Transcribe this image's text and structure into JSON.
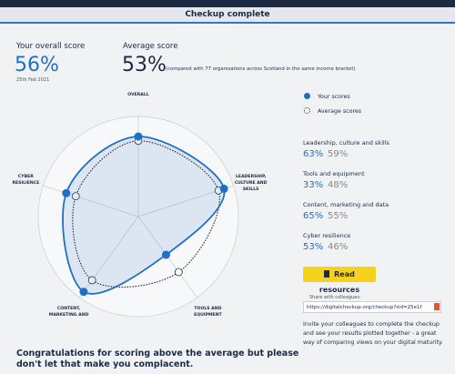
{
  "header": {
    "title": "Checkup complete"
  },
  "overall": {
    "label": "Your overall score",
    "value": "56%",
    "date": "25th Feb 2021"
  },
  "average": {
    "label": "Average score",
    "value": "53%",
    "note": "(compared with 77 organisations across Scotland in the same income bracket)"
  },
  "chart_data": {
    "type": "radar",
    "categories": [
      "OVERALL",
      "LEADERSHIP, CULTURE AND SKILLS",
      "TOOLS AND EQUIPMENT",
      "CONTENT, MARKETING AND",
      "CYBER RESILIENCE"
    ],
    "rlim": [
      0,
      70
    ],
    "legend": "right",
    "series": [
      {
        "name": "Your scores",
        "color": "#1f6fc5",
        "values": [
          56,
          63,
          33,
          65,
          53
        ]
      },
      {
        "name": "Average scores",
        "color": "#222222",
        "values": [
          53,
          59,
          48,
          55,
          46
        ]
      }
    ]
  },
  "scores": [
    {
      "label": "Leadership, culture and skills",
      "yours": "63%",
      "average": "59%"
    },
    {
      "label": "Tools and equipment",
      "yours": "33%",
      "average": "48%"
    },
    {
      "label": "Content, marketing and data",
      "yours": "65%",
      "average": "55%"
    },
    {
      "label": "Cyber resilience",
      "yours": "53%",
      "average": "46%"
    }
  ],
  "button": "Read resources",
  "share": {
    "label": "Share with colleagues:",
    "url": "https://digitalcheckup.org/checkup?sid=25e1f"
  },
  "invite": "Invite your colleagues to complete the checkup and see your results plotted together - a great way of comparing views on your digital maturity.",
  "message": "Congratulations for scoring above the average but please don't let that make you complacent."
}
